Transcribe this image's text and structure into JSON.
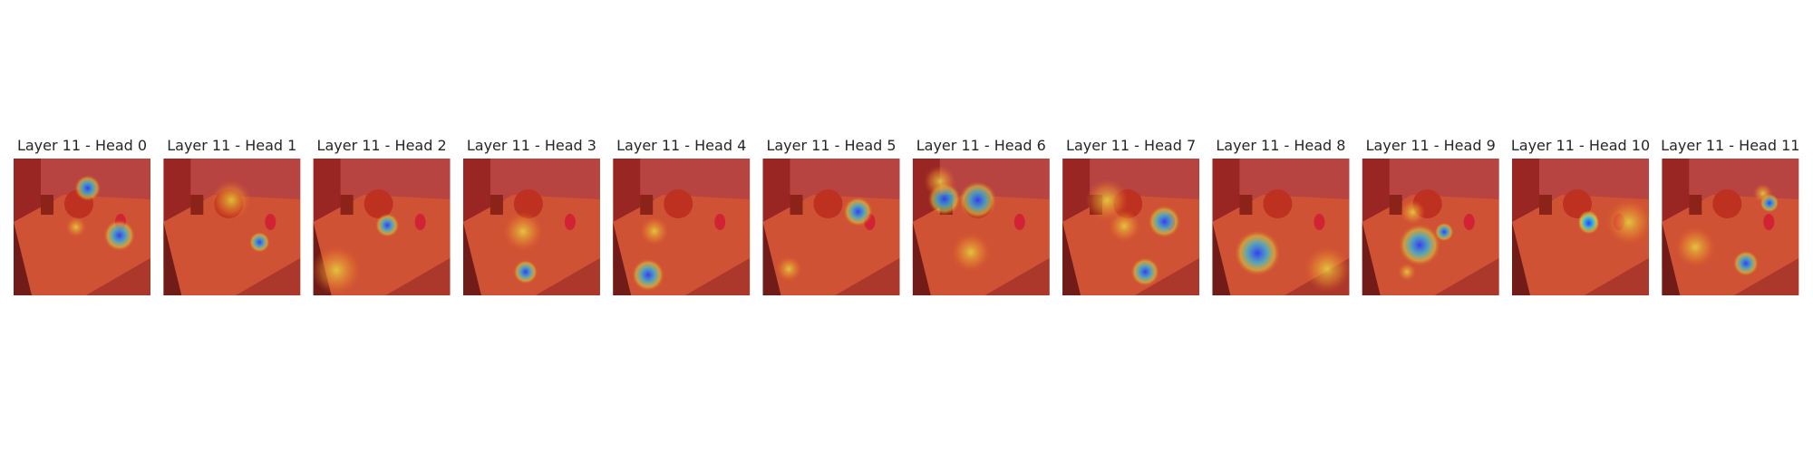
{
  "panels": [
    {
      "title": "Layer 11 - Head 0"
    },
    {
      "title": "Layer 11 - Head 1"
    },
    {
      "title": "Layer 11 - Head 2"
    },
    {
      "title": "Layer 11 - Head 3"
    },
    {
      "title": "Layer 11 - Head 4"
    },
    {
      "title": "Layer 11 - Head 5"
    },
    {
      "title": "Layer 11 - Head 6"
    },
    {
      "title": "Layer 11 - Head 7"
    },
    {
      "title": "Layer 11 - Head 8"
    },
    {
      "title": "Layer 11 - Head 9"
    },
    {
      "title": "Layer 11 - Head 10"
    },
    {
      "title": "Layer 11 - Head 11"
    }
  ]
}
